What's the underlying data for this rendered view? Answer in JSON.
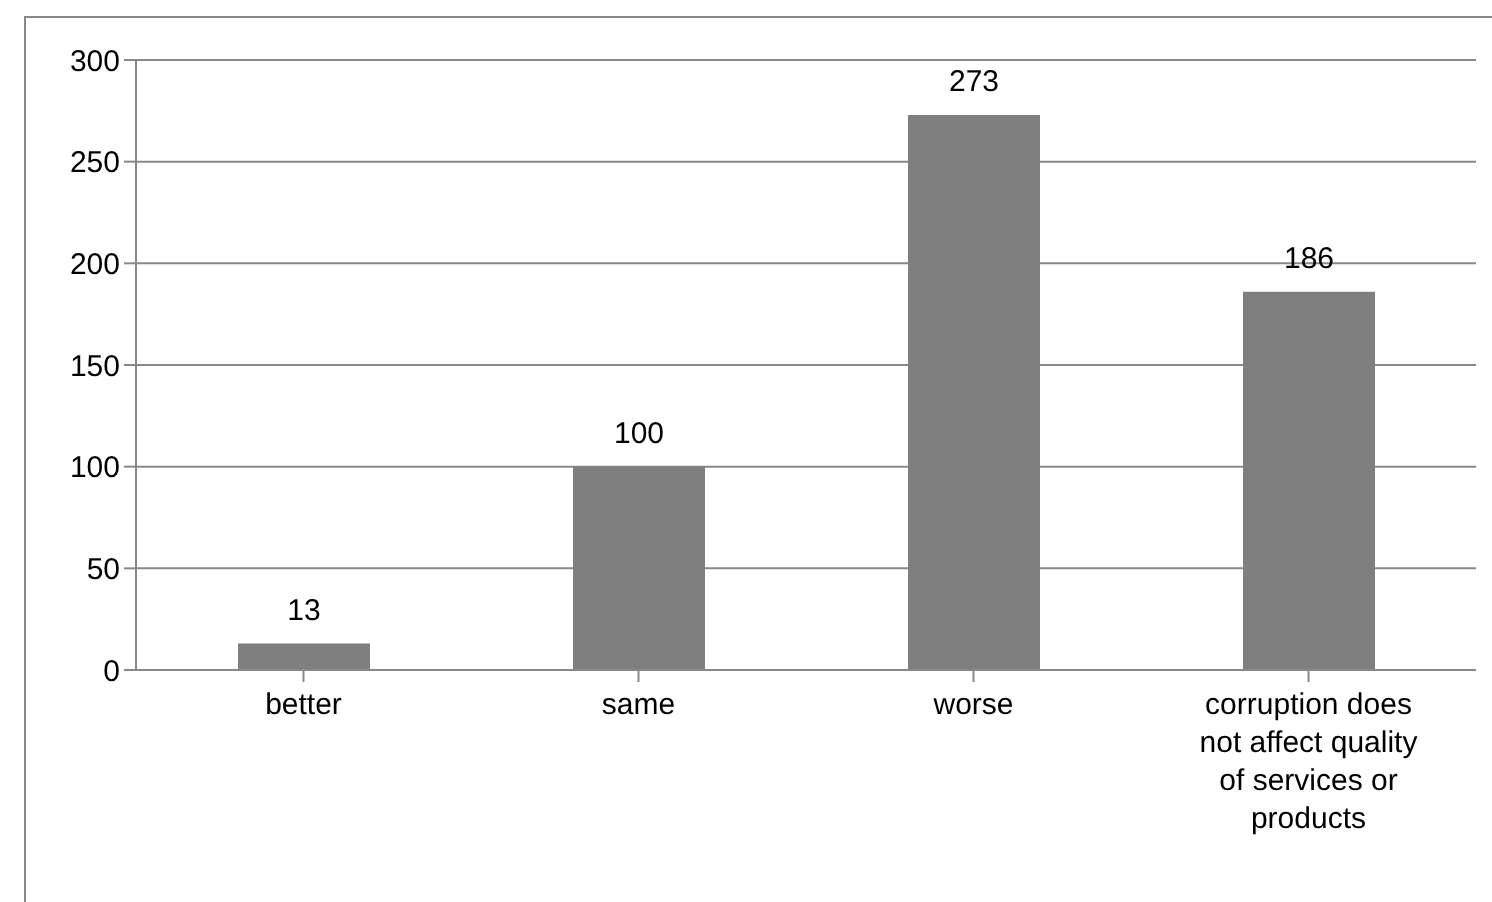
{
  "chart_data": {
    "type": "bar",
    "categories": [
      "better",
      "same",
      "worse",
      "corruption does not affect quality of services or products"
    ],
    "values": [
      13,
      100,
      273,
      186
    ],
    "color": "#7f7f7f",
    "ylim": [
      0,
      300
    ],
    "yticks": [
      0,
      50,
      100,
      150,
      200,
      250,
      300
    ],
    "grid": "y",
    "data_labels": true
  }
}
